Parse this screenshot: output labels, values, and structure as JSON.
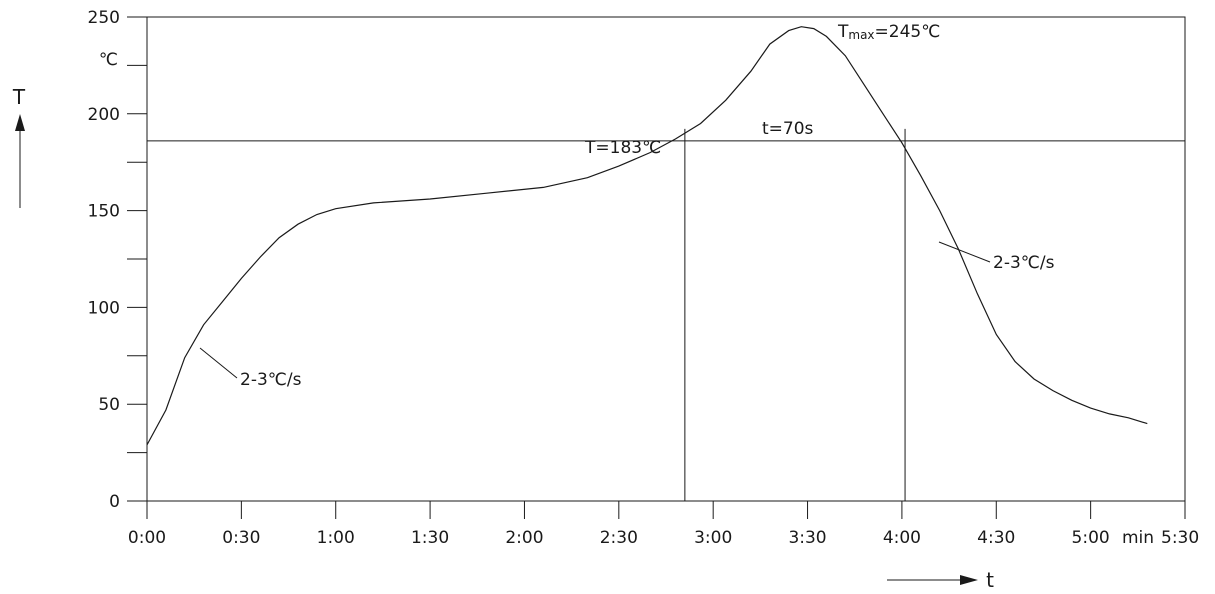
{
  "chart_data": {
    "type": "line",
    "title": "",
    "xlabel": "t",
    "ylabel": "T",
    "x_unit": "min",
    "y_unit": "℃",
    "xlim": [
      "0:00",
      "5:30"
    ],
    "ylim": [
      0,
      250
    ],
    "x_ticks": [
      "0:00",
      "0:30",
      "1:00",
      "1:30",
      "2:00",
      "2:30",
      "3:00",
      "3:30",
      "4:00",
      "4:30",
      "5:00",
      "5:30"
    ],
    "y_ticks": [
      0,
      50,
      100,
      150,
      200,
      250
    ],
    "grid": false,
    "series": [
      {
        "x": [
          "0:00",
          "0:06",
          "0:12",
          "0:18",
          "0:24",
          "0:30",
          "0:36",
          "0:42",
          "0:48",
          "0:54",
          "1:00",
          "1:12",
          "1:30",
          "1:48",
          "2:06",
          "2:20",
          "2:30",
          "2:40",
          "2:48",
          "2:56",
          "3:04",
          "3:12",
          "3:18",
          "3:24",
          "3:28",
          "3:32",
          "3:36",
          "3:42",
          "3:48",
          "3:54",
          "4:00",
          "4:06",
          "4:12",
          "4:18",
          "4:24",
          "4:30",
          "4:36",
          "4:42",
          "4:48",
          "4:54",
          "5:00",
          "5:06",
          "5:12",
          "5:18"
        ],
        "y": [
          29,
          47,
          74,
          91,
          103,
          115,
          126,
          136,
          143,
          148,
          151,
          154,
          156,
          159,
          162,
          167,
          173,
          180,
          187,
          195,
          207,
          222,
          236,
          243,
          245,
          244,
          240,
          230,
          215,
          200,
          185,
          168,
          150,
          130,
          107,
          86,
          72,
          63,
          57,
          52,
          48,
          45,
          43,
          40
        ]
      }
    ],
    "annotations": {
      "t_line_label": "T=183℃",
      "tmax_prefix": "T",
      "tmax_sub": "max",
      "tmax_suffix": "=245℃",
      "duration_label": "t=70s",
      "rate_rise": "2-3℃/s",
      "rate_fall": "2-3℃/s"
    },
    "reference": {
      "y": 186,
      "x_start": "2:51",
      "x_end": "4:01"
    }
  }
}
